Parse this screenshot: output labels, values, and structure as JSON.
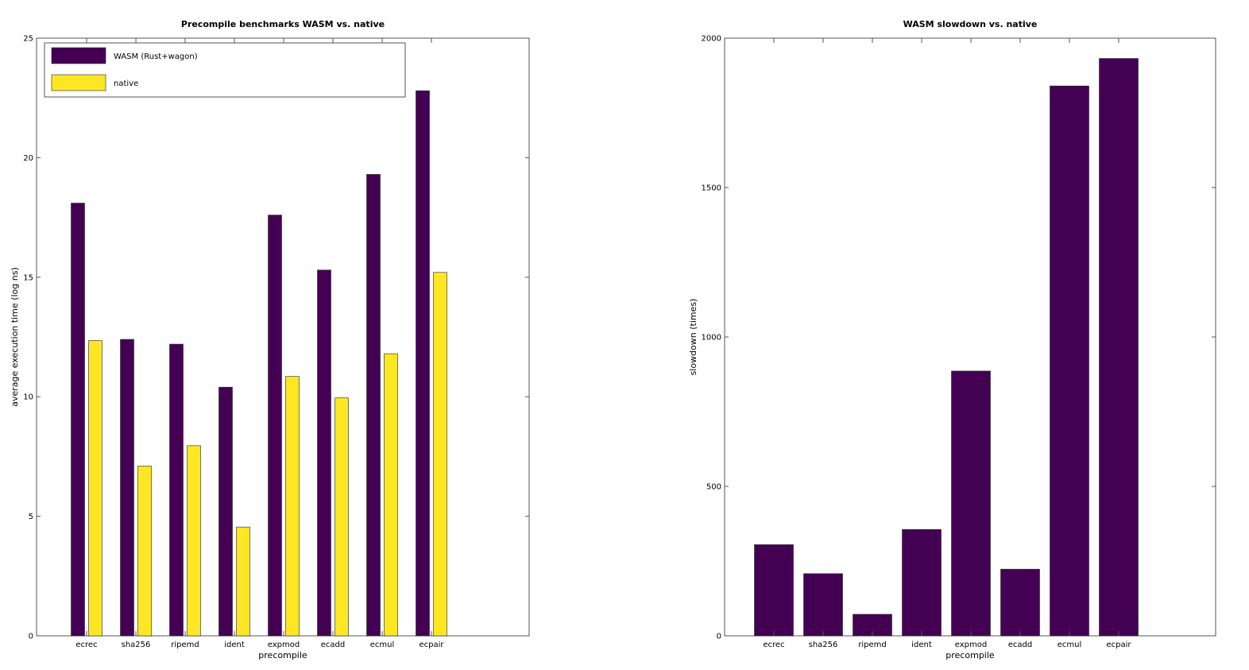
{
  "colors": {
    "wasm": "#440154",
    "native": "#fde725",
    "axis": "#000000",
    "frame": "#808080"
  },
  "chart_data": [
    {
      "type": "bar",
      "title": "Precompile benchmarks WASM vs. native",
      "xlabel": "precompile",
      "ylabel": "average execution time (log ns)",
      "ylim": [
        0,
        25
      ],
      "yticks": [
        0,
        5,
        10,
        15,
        20,
        25
      ],
      "grid": false,
      "legend_position": "top-left",
      "categories": [
        "ecrec",
        "sha256",
        "ripemd",
        "ident",
        "expmod",
        "ecadd",
        "ecmul",
        "ecpair"
      ],
      "series": [
        {
          "name": "WASM (Rust+wagon)",
          "values": [
            18.1,
            12.4,
            12.2,
            10.4,
            17.6,
            15.3,
            19.3,
            22.8
          ]
        },
        {
          "name": "native",
          "values": [
            12.35,
            7.1,
            7.95,
            4.55,
            10.85,
            9.95,
            11.8,
            15.2
          ]
        }
      ]
    },
    {
      "type": "bar",
      "title": "WASM slowdown vs. native",
      "xlabel": "precompile",
      "ylabel": "slowdown (times)",
      "ylim": [
        0,
        2000
      ],
      "yticks": [
        0,
        500,
        1000,
        1500,
        2000
      ],
      "grid": false,
      "categories": [
        "ecrec",
        "sha256",
        "ripemd",
        "ident",
        "expmod",
        "ecadd",
        "ecmul",
        "ecpair"
      ],
      "series": [
        {
          "values": [
            305,
            208,
            72,
            356,
            886,
            223,
            1840,
            1932
          ]
        }
      ]
    }
  ]
}
